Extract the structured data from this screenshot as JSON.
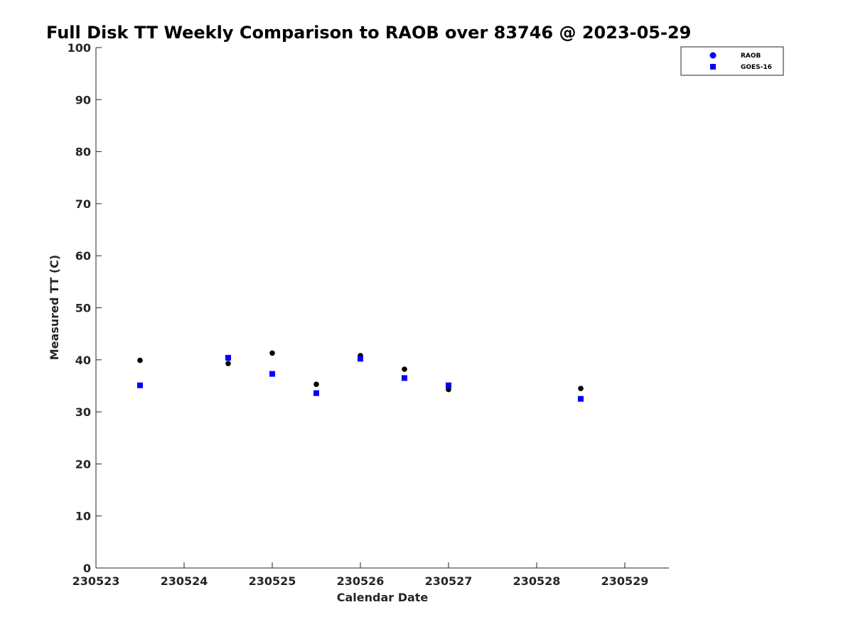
{
  "chart_data": {
    "type": "scatter",
    "title": "Full Disk TT Weekly Comparison to RAOB over 83746 @ 2023-05-29",
    "xlabel": "Calendar Date",
    "ylabel": "Measured TT (C)",
    "xlim": [
      "2023-05-23",
      "2023-05-29 12:00"
    ],
    "ylim": [
      0,
      100
    ],
    "x_tick_labels": [
      "230523",
      "230524",
      "230525",
      "230526",
      "230527",
      "230528",
      "230529"
    ],
    "y_tick_labels": [
      "0",
      "10",
      "20",
      "30",
      "40",
      "50",
      "60",
      "70",
      "80",
      "90",
      "100"
    ],
    "legend_position": "top-right",
    "grid": false,
    "series": [
      {
        "name": "RAOB",
        "marker": "circle",
        "color": "#000000",
        "legend_color": "#0000ff",
        "points": [
          {
            "x": "2023-05-23 12:00",
            "y": 39.9
          },
          {
            "x": "2023-05-24 12:00",
            "y": 39.3
          },
          {
            "x": "2023-05-25 00:00",
            "y": 41.3
          },
          {
            "x": "2023-05-25 12:00",
            "y": 35.3
          },
          {
            "x": "2023-05-26 00:00",
            "y": 40.8
          },
          {
            "x": "2023-05-26 12:00",
            "y": 38.2
          },
          {
            "x": "2023-05-27 00:00",
            "y": 34.3
          },
          {
            "x": "2023-05-28 12:00",
            "y": 34.5
          }
        ]
      },
      {
        "name": "GOES-16",
        "marker": "square",
        "color": "#0000ff",
        "legend_color": "#0000ff",
        "points": [
          {
            "x": "2023-05-23 12:00",
            "y": 35.1
          },
          {
            "x": "2023-05-24 12:00",
            "y": 40.4
          },
          {
            "x": "2023-05-25 00:00",
            "y": 37.3
          },
          {
            "x": "2023-05-25 12:00",
            "y": 33.6
          },
          {
            "x": "2023-05-26 00:00",
            "y": 40.2
          },
          {
            "x": "2023-05-26 12:00",
            "y": 36.5
          },
          {
            "x": "2023-05-27 00:00",
            "y": 35.1
          },
          {
            "x": "2023-05-28 12:00",
            "y": 32.5
          }
        ]
      }
    ]
  }
}
